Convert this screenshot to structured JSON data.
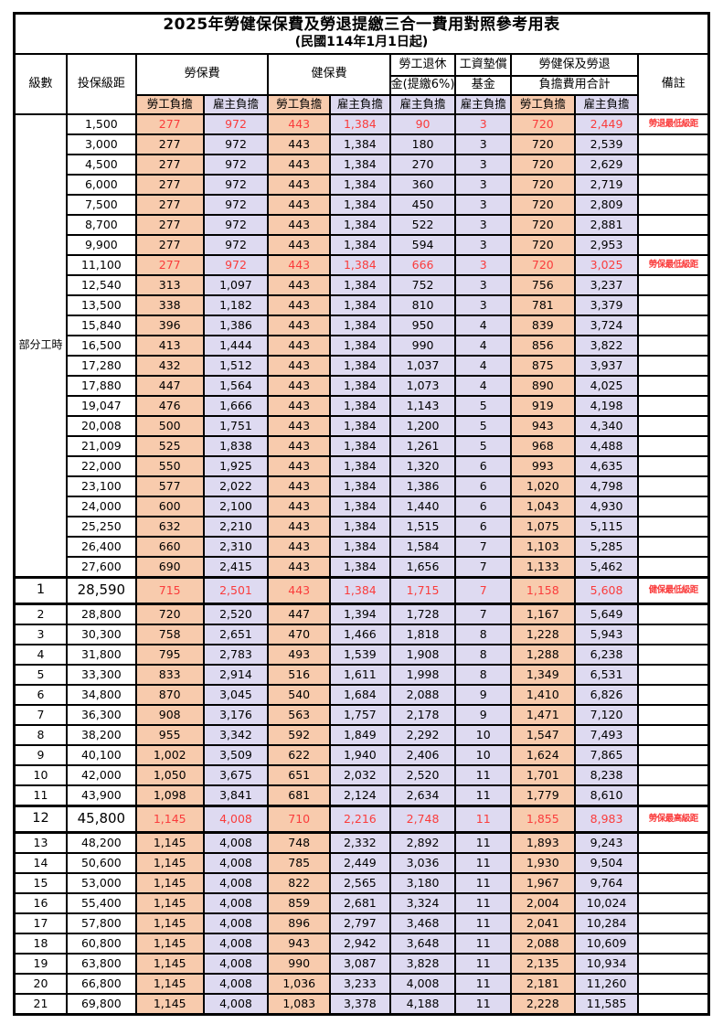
{
  "title": "2025年勞健保保費及勞退提繳三合一費用對照參考用表",
  "subtitle": "(民國114年1月1日起)",
  "colors": {
    "employee_fill": "#F8CBAD",
    "employer_fill": "#DEDAF1",
    "highlight_red": "#FA3C3C"
  },
  "header": {
    "level": "級數",
    "salary_bracket": "投保級距",
    "labor_insurance": "勞保費",
    "health_insurance": "健保費",
    "pension_line1": "勞工退休",
    "pension_line2": "金(提繳6%)",
    "wage_fund_line1": "工資墊償",
    "wage_fund_line2": "基金",
    "total_line1": "勞健保及勞退",
    "total_line2": "負擔費用合計",
    "remark": "備註",
    "employee_share": "勞工負擔",
    "employer_share": "雇主負擔"
  },
  "part_time": {
    "label": "部分工時",
    "span": 23
  },
  "rows": [
    {
      "level": "",
      "salary": "1,500",
      "values": [
        "277",
        "972",
        "443",
        "1,384",
        "90",
        "3",
        "720",
        "2,449"
      ],
      "remark": "勞退最低級距",
      "red": true,
      "big": false
    },
    {
      "level": "",
      "salary": "3,000",
      "values": [
        "277",
        "972",
        "443",
        "1,384",
        "180",
        "3",
        "720",
        "2,539"
      ],
      "remark": "",
      "red": false,
      "big": false
    },
    {
      "level": "",
      "salary": "4,500",
      "values": [
        "277",
        "972",
        "443",
        "1,384",
        "270",
        "3",
        "720",
        "2,629"
      ],
      "remark": "",
      "red": false,
      "big": false
    },
    {
      "level": "",
      "salary": "6,000",
      "values": [
        "277",
        "972",
        "443",
        "1,384",
        "360",
        "3",
        "720",
        "2,719"
      ],
      "remark": "",
      "red": false,
      "big": false
    },
    {
      "level": "",
      "salary": "7,500",
      "values": [
        "277",
        "972",
        "443",
        "1,384",
        "450",
        "3",
        "720",
        "2,809"
      ],
      "remark": "",
      "red": false,
      "big": false
    },
    {
      "level": "",
      "salary": "8,700",
      "values": [
        "277",
        "972",
        "443",
        "1,384",
        "522",
        "3",
        "720",
        "2,881"
      ],
      "remark": "",
      "red": false,
      "big": false
    },
    {
      "level": "",
      "salary": "9,900",
      "values": [
        "277",
        "972",
        "443",
        "1,384",
        "594",
        "3",
        "720",
        "2,953"
      ],
      "remark": "",
      "red": false,
      "big": false
    },
    {
      "level": "",
      "salary": "11,100",
      "values": [
        "277",
        "972",
        "443",
        "1,384",
        "666",
        "3",
        "720",
        "3,025"
      ],
      "remark": "勞保最低級距",
      "red": true,
      "big": false
    },
    {
      "level": "",
      "salary": "12,540",
      "values": [
        "313",
        "1,097",
        "443",
        "1,384",
        "752",
        "3",
        "756",
        "3,237"
      ],
      "remark": "",
      "red": false,
      "big": false
    },
    {
      "level": "",
      "salary": "13,500",
      "values": [
        "338",
        "1,182",
        "443",
        "1,384",
        "810",
        "3",
        "781",
        "3,379"
      ],
      "remark": "",
      "red": false,
      "big": false
    },
    {
      "level": "",
      "salary": "15,840",
      "values": [
        "396",
        "1,386",
        "443",
        "1,384",
        "950",
        "4",
        "839",
        "3,724"
      ],
      "remark": "",
      "red": false,
      "big": false
    },
    {
      "level": "",
      "salary": "16,500",
      "values": [
        "413",
        "1,444",
        "443",
        "1,384",
        "990",
        "4",
        "856",
        "3,822"
      ],
      "remark": "",
      "red": false,
      "big": false
    },
    {
      "level": "",
      "salary": "17,280",
      "values": [
        "432",
        "1,512",
        "443",
        "1,384",
        "1,037",
        "4",
        "875",
        "3,937"
      ],
      "remark": "",
      "red": false,
      "big": false
    },
    {
      "level": "",
      "salary": "17,880",
      "values": [
        "447",
        "1,564",
        "443",
        "1,384",
        "1,073",
        "4",
        "890",
        "4,025"
      ],
      "remark": "",
      "red": false,
      "big": false
    },
    {
      "level": "",
      "salary": "19,047",
      "values": [
        "476",
        "1,666",
        "443",
        "1,384",
        "1,143",
        "5",
        "919",
        "4,198"
      ],
      "remark": "",
      "red": false,
      "big": false
    },
    {
      "level": "",
      "salary": "20,008",
      "values": [
        "500",
        "1,751",
        "443",
        "1,384",
        "1,200",
        "5",
        "943",
        "4,340"
      ],
      "remark": "",
      "red": false,
      "big": false
    },
    {
      "level": "",
      "salary": "21,009",
      "values": [
        "525",
        "1,838",
        "443",
        "1,384",
        "1,261",
        "5",
        "968",
        "4,488"
      ],
      "remark": "",
      "red": false,
      "big": false
    },
    {
      "level": "",
      "salary": "22,000",
      "values": [
        "550",
        "1,925",
        "443",
        "1,384",
        "1,320",
        "6",
        "993",
        "4,635"
      ],
      "remark": "",
      "red": false,
      "big": false
    },
    {
      "level": "",
      "salary": "23,100",
      "values": [
        "577",
        "2,022",
        "443",
        "1,384",
        "1,386",
        "6",
        "1,020",
        "4,798"
      ],
      "remark": "",
      "red": false,
      "big": false
    },
    {
      "level": "",
      "salary": "24,000",
      "values": [
        "600",
        "2,100",
        "443",
        "1,384",
        "1,440",
        "6",
        "1,043",
        "4,930"
      ],
      "remark": "",
      "red": false,
      "big": false
    },
    {
      "level": "",
      "salary": "25,250",
      "values": [
        "632",
        "2,210",
        "443",
        "1,384",
        "1,515",
        "6",
        "1,075",
        "5,115"
      ],
      "remark": "",
      "red": false,
      "big": false
    },
    {
      "level": "",
      "salary": "26,400",
      "values": [
        "660",
        "2,310",
        "443",
        "1,384",
        "1,584",
        "7",
        "1,103",
        "5,285"
      ],
      "remark": "",
      "red": false,
      "big": false
    },
    {
      "level": "",
      "salary": "27,600",
      "values": [
        "690",
        "2,415",
        "443",
        "1,384",
        "1,656",
        "7",
        "1,133",
        "5,462"
      ],
      "remark": "",
      "red": false,
      "big": false
    },
    {
      "level": "1",
      "salary": "28,590",
      "values": [
        "715",
        "2,501",
        "443",
        "1,384",
        "1,715",
        "7",
        "1,158",
        "5,608"
      ],
      "remark": "健保最低級距",
      "red": true,
      "big": true
    },
    {
      "level": "2",
      "salary": "28,800",
      "values": [
        "720",
        "2,520",
        "447",
        "1,394",
        "1,728",
        "7",
        "1,167",
        "5,649"
      ],
      "remark": "",
      "red": false,
      "big": false
    },
    {
      "level": "3",
      "salary": "30,300",
      "values": [
        "758",
        "2,651",
        "470",
        "1,466",
        "1,818",
        "8",
        "1,228",
        "5,943"
      ],
      "remark": "",
      "red": false,
      "big": false
    },
    {
      "level": "4",
      "salary": "31,800",
      "values": [
        "795",
        "2,783",
        "493",
        "1,539",
        "1,908",
        "8",
        "1,288",
        "6,238"
      ],
      "remark": "",
      "red": false,
      "big": false
    },
    {
      "level": "5",
      "salary": "33,300",
      "values": [
        "833",
        "2,914",
        "516",
        "1,611",
        "1,998",
        "8",
        "1,349",
        "6,531"
      ],
      "remark": "",
      "red": false,
      "big": false
    },
    {
      "level": "6",
      "salary": "34,800",
      "values": [
        "870",
        "3,045",
        "540",
        "1,684",
        "2,088",
        "9",
        "1,410",
        "6,826"
      ],
      "remark": "",
      "red": false,
      "big": false
    },
    {
      "level": "7",
      "salary": "36,300",
      "values": [
        "908",
        "3,176",
        "563",
        "1,757",
        "2,178",
        "9",
        "1,471",
        "7,120"
      ],
      "remark": "",
      "red": false,
      "big": false
    },
    {
      "level": "8",
      "salary": "38,200",
      "values": [
        "955",
        "3,342",
        "592",
        "1,849",
        "2,292",
        "10",
        "1,547",
        "7,493"
      ],
      "remark": "",
      "red": false,
      "big": false
    },
    {
      "level": "9",
      "salary": "40,100",
      "values": [
        "1,002",
        "3,509",
        "622",
        "1,940",
        "2,406",
        "10",
        "1,624",
        "7,865"
      ],
      "remark": "",
      "red": false,
      "big": false
    },
    {
      "level": "10",
      "salary": "42,000",
      "values": [
        "1,050",
        "3,675",
        "651",
        "2,032",
        "2,520",
        "11",
        "1,701",
        "8,238"
      ],
      "remark": "",
      "red": false,
      "big": false
    },
    {
      "level": "11",
      "salary": "43,900",
      "values": [
        "1,098",
        "3,841",
        "681",
        "2,124",
        "2,634",
        "11",
        "1,779",
        "8,610"
      ],
      "remark": "",
      "red": false,
      "big": false
    },
    {
      "level": "12",
      "salary": "45,800",
      "values": [
        "1,145",
        "4,008",
        "710",
        "2,216",
        "2,748",
        "11",
        "1,855",
        "8,983"
      ],
      "remark": "勞保最高級距",
      "red": true,
      "big": true
    },
    {
      "level": "13",
      "salary": "48,200",
      "values": [
        "1,145",
        "4,008",
        "748",
        "2,332",
        "2,892",
        "11",
        "1,893",
        "9,243"
      ],
      "remark": "",
      "red": false,
      "big": false
    },
    {
      "level": "14",
      "salary": "50,600",
      "values": [
        "1,145",
        "4,008",
        "785",
        "2,449",
        "3,036",
        "11",
        "1,930",
        "9,504"
      ],
      "remark": "",
      "red": false,
      "big": false
    },
    {
      "level": "15",
      "salary": "53,000",
      "values": [
        "1,145",
        "4,008",
        "822",
        "2,565",
        "3,180",
        "11",
        "1,967",
        "9,764"
      ],
      "remark": "",
      "red": false,
      "big": false
    },
    {
      "level": "16",
      "salary": "55,400",
      "values": [
        "1,145",
        "4,008",
        "859",
        "2,681",
        "3,324",
        "11",
        "2,004",
        "10,024"
      ],
      "remark": "",
      "red": false,
      "big": false
    },
    {
      "level": "17",
      "salary": "57,800",
      "values": [
        "1,145",
        "4,008",
        "896",
        "2,797",
        "3,468",
        "11",
        "2,041",
        "10,284"
      ],
      "remark": "",
      "red": false,
      "big": false
    },
    {
      "level": "18",
      "salary": "60,800",
      "values": [
        "1,145",
        "4,008",
        "943",
        "2,942",
        "3,648",
        "11",
        "2,088",
        "10,609"
      ],
      "remark": "",
      "red": false,
      "big": false
    },
    {
      "level": "19",
      "salary": "63,800",
      "values": [
        "1,145",
        "4,008",
        "990",
        "3,087",
        "3,828",
        "11",
        "2,135",
        "10,934"
      ],
      "remark": "",
      "red": false,
      "big": false
    },
    {
      "level": "20",
      "salary": "66,800",
      "values": [
        "1,145",
        "4,008",
        "1,036",
        "3,233",
        "4,008",
        "11",
        "2,181",
        "11,260"
      ],
      "remark": "",
      "red": false,
      "big": false
    },
    {
      "level": "21",
      "salary": "69,800",
      "values": [
        "1,145",
        "4,008",
        "1,083",
        "3,378",
        "4,188",
        "11",
        "2,228",
        "11,585"
      ],
      "remark": "",
      "red": false,
      "big": false
    }
  ]
}
